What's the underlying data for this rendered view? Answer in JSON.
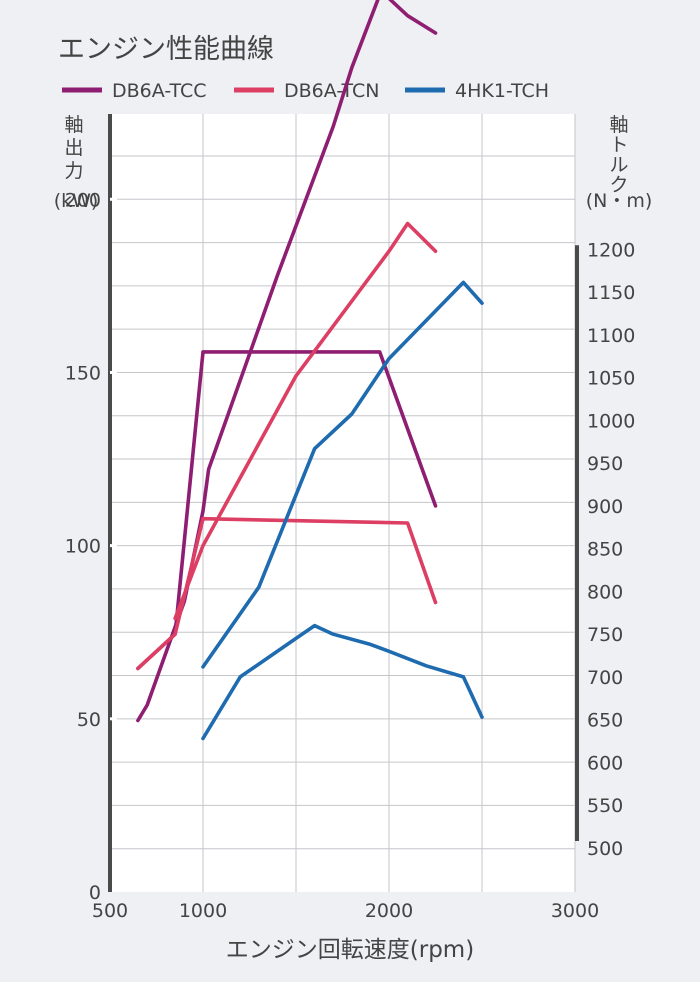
{
  "chart_data": {
    "type": "line",
    "title": "エンジン性能曲線",
    "xlabel": "エンジン回転速度(rpm)",
    "ylabel_left": [
      "軸",
      "出",
      "力",
      "(kW)"
    ],
    "ylabel_right": [
      "軸",
      "ト",
      "ル",
      "ク",
      "(N・m)"
    ],
    "xlim": [
      500,
      3000
    ],
    "ylim_left": [
      0,
      220
    ],
    "ylim_right": [
      500,
      1250
    ],
    "x_ticks": [
      500,
      1000,
      2000,
      3000
    ],
    "y_left_ticks": [
      0,
      50,
      100,
      150,
      200
    ],
    "y_right_ticks": [
      500,
      550,
      600,
      650,
      700,
      750,
      800,
      850,
      900,
      950,
      1000,
      1050,
      1100,
      1150,
      1200
    ],
    "grid": true,
    "legend_position": "top",
    "series": [
      {
        "name": "DB6A-TCC",
        "color": "#8e1e72",
        "power_kW": [
          [
            650,
            49.5
          ],
          [
            700,
            54
          ],
          [
            900,
            84
          ],
          [
            1000,
            110
          ],
          [
            1030,
            122
          ],
          [
            1400,
            178
          ],
          [
            1700,
            221
          ],
          [
            1800,
            238
          ],
          [
            1950,
            259
          ],
          [
            2000,
            258
          ],
          [
            2100,
            253
          ],
          [
            2250,
            248
          ]
        ],
        "torque_Nm": [
          [
            650,
            710
          ],
          [
            850,
            750
          ],
          [
            1000,
            1080
          ],
          [
            1950,
            1080
          ],
          [
            2250,
            900
          ]
        ]
      },
      {
        "name": "DB6A-TCN",
        "color": "#dc3f63",
        "power_kW": [
          [
            850,
            79
          ],
          [
            1000,
            100
          ],
          [
            1500,
            149
          ],
          [
            2000,
            185
          ],
          [
            2100,
            193
          ],
          [
            2250,
            185
          ]
        ],
        "torque_Nm": [
          [
            650,
            710
          ],
          [
            850,
            750
          ],
          [
            1000,
            885
          ],
          [
            2100,
            880
          ],
          [
            2250,
            787
          ]
        ]
      },
      {
        "name": "4HK1-TCH",
        "color": "#1e6bb0",
        "power_kW": [
          [
            1000,
            65
          ],
          [
            1300,
            88
          ],
          [
            1600,
            128
          ],
          [
            1800,
            138
          ],
          [
            2000,
            154
          ],
          [
            2200,
            165
          ],
          [
            2400,
            176
          ],
          [
            2500,
            170
          ]
        ],
        "torque_Nm": [
          [
            1000,
            628
          ],
          [
            1200,
            700
          ],
          [
            1500,
            745
          ],
          [
            1600,
            760
          ],
          [
            1700,
            750
          ],
          [
            1900,
            738
          ],
          [
            2000,
            730
          ],
          [
            2200,
            713
          ],
          [
            2400,
            700
          ],
          [
            2500,
            653
          ]
        ]
      }
    ]
  }
}
